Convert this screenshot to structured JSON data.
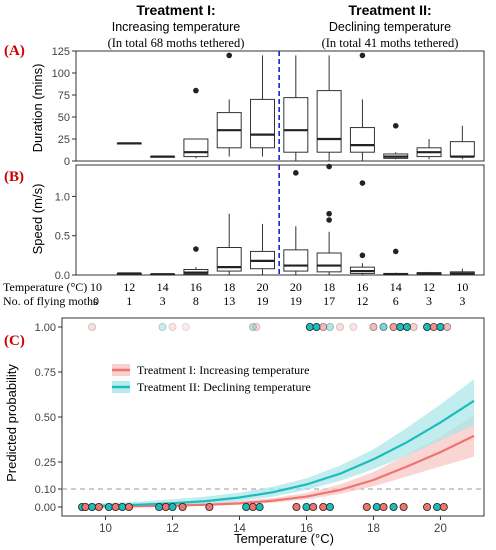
{
  "colors": {
    "panel_label": "#cc0000",
    "divider": "#1f1fd6",
    "treatment_1": "#f0736f",
    "treatment_1_band": "#f7c4c2",
    "treatment_2": "#1cbcbc",
    "treatment_2_band": "#a6e6e8"
  },
  "header": {
    "t1_title": "Treatment I:",
    "t1_sub": "Increasing temperature",
    "t1_note": "(In total 68 moths tethered)",
    "t2_title": "Treatment II:",
    "t2_sub": "Declining temperature",
    "t2_note": "(In total 41 moths tethered)"
  },
  "panels": {
    "a": "(A)",
    "b": "(B)",
    "c": "(C)"
  },
  "table": {
    "temp_label": "Temperature (°C)",
    "count_label": "No. of flying moths",
    "temps": [
      "10",
      "12",
      "14",
      "16",
      "18",
      "20",
      "20",
      "18",
      "16",
      "14",
      "12",
      "10"
    ],
    "counts": [
      "0",
      "1",
      "3",
      "8",
      "13",
      "19",
      "19",
      "17",
      "12",
      "6",
      "3",
      "3"
    ]
  },
  "chart_data": [
    {
      "type": "box",
      "panel": "(A)",
      "ylabel": "Duration (mins)",
      "ylim": [
        0,
        125
      ],
      "yticks": [
        0,
        25,
        50,
        75,
        100,
        125
      ],
      "groups": [
        {
          "treatment": "I",
          "temp": 10,
          "box": null,
          "outliers": []
        },
        {
          "treatment": "I",
          "temp": 12,
          "box": [
            20,
            20,
            20,
            20,
            20
          ],
          "outliers": []
        },
        {
          "treatment": "I",
          "temp": 14,
          "box": [
            5,
            5,
            5,
            5,
            5
          ],
          "outliers": []
        },
        {
          "treatment": "I",
          "temp": 16,
          "box": [
            3,
            5,
            10,
            25,
            25
          ],
          "outliers": [
            80
          ]
        },
        {
          "treatment": "I",
          "temp": 18,
          "box": [
            5,
            15,
            35,
            55,
            70
          ],
          "outliers": [
            120
          ]
        },
        {
          "treatment": "I",
          "temp": 20,
          "box": [
            5,
            15,
            30,
            70,
            120
          ],
          "outliers": []
        },
        {
          "treatment": "II",
          "temp": 20,
          "box": [
            0,
            10,
            35,
            72,
            120
          ],
          "outliers": []
        },
        {
          "treatment": "II",
          "temp": 18,
          "box": [
            0,
            10,
            25,
            80,
            120
          ],
          "outliers": []
        },
        {
          "treatment": "II",
          "temp": 16,
          "box": [
            0,
            10,
            18,
            38,
            70
          ],
          "outliers": [
            120
          ]
        },
        {
          "treatment": "II",
          "temp": 14,
          "box": [
            2,
            3,
            5,
            8,
            10
          ],
          "outliers": [
            40
          ]
        },
        {
          "treatment": "II",
          "temp": 12,
          "box": [
            2,
            5,
            10,
            15,
            25
          ],
          "outliers": []
        },
        {
          "treatment": "II",
          "temp": 10,
          "box": [
            2,
            5,
            5,
            22,
            40
          ],
          "outliers": []
        }
      ]
    },
    {
      "type": "box",
      "panel": "(B)",
      "ylabel": "Speed (m/s)",
      "ylim": [
        0,
        1.4
      ],
      "yticks": [
        0.0,
        0.5,
        1.0
      ],
      "groups": [
        {
          "treatment": "I",
          "temp": 10,
          "box": null,
          "outliers": []
        },
        {
          "treatment": "I",
          "temp": 12,
          "box": [
            0.02,
            0.02,
            0.02,
            0.02,
            0.02
          ],
          "outliers": []
        },
        {
          "treatment": "I",
          "temp": 14,
          "box": [
            0.01,
            0.01,
            0.01,
            0.01,
            0.01
          ],
          "outliers": []
        },
        {
          "treatment": "I",
          "temp": 16,
          "box": [
            0.0,
            0.01,
            0.03,
            0.07,
            0.1
          ],
          "outliers": [
            0.33
          ]
        },
        {
          "treatment": "I",
          "temp": 18,
          "box": [
            0.0,
            0.05,
            0.1,
            0.35,
            0.78
          ],
          "outliers": []
        },
        {
          "treatment": "I",
          "temp": 20,
          "box": [
            0.0,
            0.08,
            0.18,
            0.3,
            0.65
          ],
          "outliers": []
        },
        {
          "treatment": "II",
          "temp": 20,
          "box": [
            0.0,
            0.05,
            0.12,
            0.32,
            0.62
          ],
          "outliers": [
            1.3
          ]
        },
        {
          "treatment": "II",
          "temp": 18,
          "box": [
            0.0,
            0.04,
            0.12,
            0.28,
            0.55
          ],
          "outliers": [
            0.7,
            0.78,
            1.38
          ]
        },
        {
          "treatment": "II",
          "temp": 16,
          "box": [
            0.0,
            0.02,
            0.05,
            0.1,
            0.15
          ],
          "outliers": [
            0.25,
            1.17
          ]
        },
        {
          "treatment": "II",
          "temp": 14,
          "box": [
            0.0,
            0.0,
            0.01,
            0.02,
            0.03
          ],
          "outliers": [
            0.3
          ]
        },
        {
          "treatment": "II",
          "temp": 12,
          "box": [
            0.0,
            0.01,
            0.02,
            0.03,
            0.04
          ],
          "outliers": []
        },
        {
          "treatment": "II",
          "temp": 10,
          "box": [
            0.0,
            0.01,
            0.02,
            0.04,
            0.08
          ],
          "outliers": []
        }
      ]
    },
    {
      "type": "line",
      "panel": "(C)",
      "xlabel": "Temperature (°C)",
      "ylabel": "Predicted probability",
      "xlim": [
        8.7,
        21.3
      ],
      "ylim": [
        -0.05,
        1.05
      ],
      "xticks": [
        10,
        12,
        14,
        16,
        18,
        20
      ],
      "yticks": [
        0.0,
        0.1,
        0.25,
        0.5,
        0.75,
        1.0
      ],
      "ytick_labels": [
        "0.00",
        "0.10",
        "0.25",
        "0.50",
        "0.75",
        "1.00"
      ],
      "reference_line": 0.1,
      "legend_position": "top-left",
      "series": [
        {
          "name": "Treatment I: Increasing temperature",
          "x": [
            9.2,
            10,
            11,
            12,
            13,
            14,
            15,
            16,
            17,
            18,
            19,
            20,
            21
          ],
          "y": [
            0.002,
            0.003,
            0.005,
            0.008,
            0.012,
            0.02,
            0.035,
            0.058,
            0.095,
            0.15,
            0.225,
            0.305,
            0.395
          ],
          "lower": [
            0.0,
            0.001,
            0.002,
            0.004,
            0.007,
            0.013,
            0.024,
            0.042,
            0.072,
            0.115,
            0.17,
            0.225,
            0.28
          ],
          "upper": [
            0.008,
            0.01,
            0.013,
            0.018,
            0.024,
            0.033,
            0.05,
            0.078,
            0.125,
            0.195,
            0.29,
            0.39,
            0.51
          ]
        },
        {
          "name": "Treatment II: Declining temperature",
          "x": [
            9.2,
            10,
            11,
            12,
            13,
            14,
            15,
            16,
            17,
            18,
            19,
            20,
            21
          ],
          "y": [
            0.005,
            0.008,
            0.013,
            0.021,
            0.033,
            0.053,
            0.082,
            0.125,
            0.185,
            0.265,
            0.36,
            0.47,
            0.59
          ],
          "lower": [
            0.001,
            0.002,
            0.005,
            0.01,
            0.018,
            0.033,
            0.058,
            0.095,
            0.145,
            0.21,
            0.285,
            0.37,
            0.455
          ],
          "upper": [
            0.016,
            0.022,
            0.03,
            0.043,
            0.058,
            0.08,
            0.113,
            0.16,
            0.23,
            0.32,
            0.44,
            0.57,
            0.71
          ]
        }
      ],
      "observations": [
        {
          "series": 0,
          "x": 9.6,
          "y": 1,
          "alpha": 0.25
        },
        {
          "series": 1,
          "x": 11.7,
          "y": 1,
          "alpha": 0.25
        },
        {
          "series": 0,
          "x": 12.0,
          "y": 1,
          "alpha": 0.2
        },
        {
          "series": 0,
          "x": 12.4,
          "y": 1,
          "alpha": 0.15
        },
        {
          "series": 1,
          "x": 14.4,
          "y": 1,
          "alpha": 0.3
        },
        {
          "series": 0,
          "x": 14.5,
          "y": 1,
          "alpha": 0.25
        },
        {
          "series": 1,
          "x": 16.1,
          "y": 1,
          "alpha": 1
        },
        {
          "series": 1,
          "x": 16.3,
          "y": 1,
          "alpha": 1
        },
        {
          "series": 0,
          "x": 16.5,
          "y": 1,
          "alpha": 0.5
        },
        {
          "series": 1,
          "x": 16.7,
          "y": 1,
          "alpha": 0.35
        },
        {
          "series": 0,
          "x": 17.0,
          "y": 1,
          "alpha": 0.25
        },
        {
          "series": 0,
          "x": 17.4,
          "y": 1,
          "alpha": 0.2
        },
        {
          "series": 0,
          "x": 18.0,
          "y": 1,
          "alpha": 0.5
        },
        {
          "series": 1,
          "x": 18.3,
          "y": 1,
          "alpha": 0.6
        },
        {
          "series": 0,
          "x": 18.6,
          "y": 1,
          "alpha": 0.7
        },
        {
          "series": 1,
          "x": 18.8,
          "y": 1,
          "alpha": 1
        },
        {
          "series": 1,
          "x": 19.0,
          "y": 1,
          "alpha": 1
        },
        {
          "series": 0,
          "x": 19.2,
          "y": 1,
          "alpha": 0.35
        },
        {
          "series": 1,
          "x": 19.6,
          "y": 1,
          "alpha": 1
        },
        {
          "series": 0,
          "x": 19.8,
          "y": 1,
          "alpha": 0.8
        },
        {
          "series": 1,
          "x": 20.0,
          "y": 1,
          "alpha": 1
        },
        {
          "series": 0,
          "x": 20.2,
          "y": 1,
          "alpha": 0.5
        },
        {
          "series": 1,
          "x": 9.3,
          "y": 0,
          "alpha": 1
        },
        {
          "series": 0,
          "x": 9.4,
          "y": 0,
          "alpha": 1
        },
        {
          "series": 1,
          "x": 9.6,
          "y": 0,
          "alpha": 1
        },
        {
          "series": 0,
          "x": 9.8,
          "y": 0,
          "alpha": 1
        },
        {
          "series": 1,
          "x": 10.1,
          "y": 0,
          "alpha": 1
        },
        {
          "series": 0,
          "x": 10.3,
          "y": 0,
          "alpha": 1
        },
        {
          "series": 1,
          "x": 10.5,
          "y": 0,
          "alpha": 1
        },
        {
          "series": 0,
          "x": 10.7,
          "y": 0,
          "alpha": 1
        },
        {
          "series": 1,
          "x": 11.6,
          "y": 0,
          "alpha": 1
        },
        {
          "series": 0,
          "x": 11.8,
          "y": 0,
          "alpha": 1
        },
        {
          "series": 1,
          "x": 12.0,
          "y": 0,
          "alpha": 1
        },
        {
          "series": 0,
          "x": 12.3,
          "y": 0,
          "alpha": 1
        },
        {
          "series": 0,
          "x": 13.1,
          "y": 0,
          "alpha": 1
        },
        {
          "series": 1,
          "x": 14.2,
          "y": 0,
          "alpha": 1
        },
        {
          "series": 0,
          "x": 14.4,
          "y": 0,
          "alpha": 1
        },
        {
          "series": 1,
          "x": 14.6,
          "y": 0,
          "alpha": 1
        },
        {
          "series": 0,
          "x": 15.7,
          "y": 0,
          "alpha": 1
        },
        {
          "series": 1,
          "x": 16.0,
          "y": 0,
          "alpha": 1
        },
        {
          "series": 0,
          "x": 16.2,
          "y": 0,
          "alpha": 1
        },
        {
          "series": 0,
          "x": 16.5,
          "y": 0,
          "alpha": 1
        },
        {
          "series": 1,
          "x": 16.7,
          "y": 0,
          "alpha": 1
        },
        {
          "series": 0,
          "x": 17.8,
          "y": 0,
          "alpha": 1
        },
        {
          "series": 1,
          "x": 18.1,
          "y": 0,
          "alpha": 1
        },
        {
          "series": 0,
          "x": 18.3,
          "y": 0,
          "alpha": 1
        },
        {
          "series": 1,
          "x": 18.6,
          "y": 0,
          "alpha": 1
        },
        {
          "series": 0,
          "x": 18.9,
          "y": 0,
          "alpha": 1
        },
        {
          "series": 0,
          "x": 19.6,
          "y": 0,
          "alpha": 1
        },
        {
          "series": 1,
          "x": 19.9,
          "y": 0,
          "alpha": 1
        },
        {
          "series": 0,
          "x": 20.1,
          "y": 0,
          "alpha": 1
        }
      ]
    }
  ]
}
